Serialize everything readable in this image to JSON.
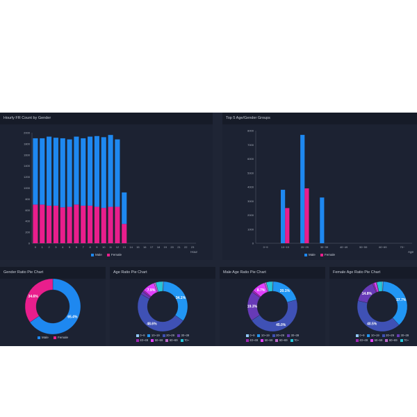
{
  "colors": {
    "male": "#1e88f0",
    "female": "#e91e8c",
    "axis_text": "#aab0bc",
    "background": "#1f2535",
    "panel": "#1c2232"
  },
  "panels": {
    "hourly": {
      "title": "Hourly FR Count by Gender",
      "axis_unit": "Hour"
    },
    "top5": {
      "title": "Top 5 Age/Gender Groups",
      "axis_unit": "Age"
    },
    "gender_pie": {
      "title": "Gender Ratio Pie Chart"
    },
    "age_pie": {
      "title": "Age Ratio Pie Chart"
    },
    "male_age_pie": {
      "title": "Male Age Ratio Pie Chart"
    },
    "female_age_pie": {
      "title": "Female Age Ratio Pie Chart"
    }
  },
  "legend": {
    "male": "Male",
    "female": "Female"
  },
  "age_groups": [
    "0~9",
    "10~19",
    "20~29",
    "30~39",
    "40~49",
    "50~59",
    "60~69",
    "70~"
  ],
  "age_colors": [
    "#90caf9",
    "#2196f3",
    "#3f51b5",
    "#673ab7",
    "#9c27b0",
    "#e040fb",
    "#ba68c8",
    "#26c6da"
  ],
  "chart_data": [
    {
      "type": "bar",
      "title": "Hourly FR Count by Gender",
      "xlabel": "Hour",
      "categories": [
        "0",
        "1",
        "2",
        "3",
        "4",
        "5",
        "6",
        "7",
        "8",
        "9",
        "10",
        "11",
        "12",
        "13",
        "14",
        "15",
        "16",
        "17",
        "18",
        "19",
        "20",
        "21",
        "22",
        "23"
      ],
      "series": [
        {
          "name": "Male",
          "values": [
            1200,
            1200,
            1250,
            1230,
            1250,
            1220,
            1230,
            1220,
            1250,
            1280,
            1280,
            1300,
            1220,
            570,
            0,
            0,
            0,
            0,
            0,
            0,
            0,
            0,
            0,
            0
          ]
        },
        {
          "name": "Female",
          "values": [
            700,
            700,
            680,
            680,
            650,
            660,
            700,
            680,
            680,
            660,
            640,
            660,
            660,
            350,
            0,
            0,
            0,
            0,
            0,
            0,
            0,
            0,
            0,
            0
          ]
        }
      ],
      "stacked": true,
      "ylim": [
        0,
        2000
      ],
      "yticks": [
        "0",
        "200",
        "400",
        "600",
        "800",
        "1000",
        "1200",
        "1400",
        "1600",
        "1800",
        "2000"
      ]
    },
    {
      "type": "bar",
      "title": "Top 5 Age/Gender Groups",
      "xlabel": "Age",
      "categories": [
        "0~9",
        "10~19",
        "20~29",
        "30~39",
        "40~49",
        "50~59",
        "60~69",
        "70~"
      ],
      "series": [
        {
          "name": "Male",
          "values": [
            0,
            3800,
            7700,
            3250,
            0,
            0,
            0,
            0
          ]
        },
        {
          "name": "Female",
          "values": [
            0,
            2500,
            3900,
            0,
            0,
            0,
            0,
            0
          ]
        }
      ],
      "ylim": [
        0,
        8000
      ],
      "yticks": [
        "0",
        "1000",
        "2000",
        "3000",
        "4000",
        "5000",
        "6000",
        "7000",
        "8000"
      ]
    },
    {
      "type": "pie",
      "title": "Gender Ratio Pie Chart",
      "categories": [
        "Male",
        "Female"
      ],
      "values": [
        65.4,
        34.6
      ],
      "labels": [
        "65.4%",
        "34.6%"
      ]
    },
    {
      "type": "pie",
      "title": "Age Ratio Pie Chart",
      "categories": [
        "0~9",
        "10~19",
        "20~29",
        "30~39",
        "40~49",
        "50~59",
        "60~69",
        "70~"
      ],
      "values": [
        0.6,
        34.1,
        48.6,
        2.0,
        1.1,
        7.9,
        1.2,
        4.5
      ],
      "labels": [
        "",
        "34.1%",
        "48.6%",
        "",
        "",
        "7.9%",
        "",
        ""
      ]
    },
    {
      "type": "pie",
      "title": "Male Age Ratio Pie Chart",
      "categories": [
        "0~9",
        "10~19",
        "20~29",
        "30~39",
        "40~49",
        "50~59",
        "60~69",
        "70~"
      ],
      "values": [
        0.5,
        20.1,
        45.0,
        19.3,
        1.2,
        8.7,
        1.2,
        4.0
      ],
      "labels": [
        "",
        "20.1%",
        "45.0%",
        "19.3%",
        "",
        "8.7%",
        "",
        ""
      ]
    },
    {
      "type": "pie",
      "title": "Female Age Ratio Pie Chart",
      "categories": [
        "0~9",
        "10~19",
        "20~29",
        "30~39",
        "40~49",
        "50~59",
        "60~69",
        "70~"
      ],
      "values": [
        0.6,
        37.7,
        40.5,
        14.8,
        1.0,
        1.4,
        0.5,
        3.5
      ],
      "labels": [
        "",
        "37.7%",
        "40.5%",
        "14.8%",
        "",
        "",
        "",
        ""
      ]
    }
  ]
}
